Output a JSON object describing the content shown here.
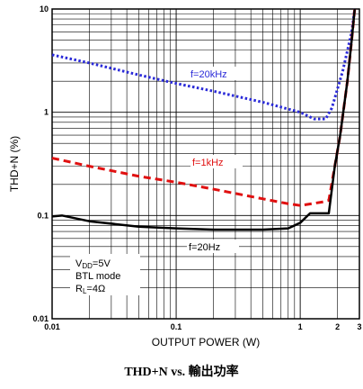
{
  "caption": "THD+N vs. 輸出功率",
  "chart_data": {
    "type": "line",
    "xlabel": "OUTPUT POWER (W)",
    "ylabel": "THD+N (%)",
    "x_scale": "log",
    "y_scale": "log",
    "xlim": [
      0.01,
      3
    ],
    "ylim": [
      0.01,
      10
    ],
    "x_ticks": [
      {
        "value": 0.01,
        "label": "0.01"
      },
      {
        "value": 0.1,
        "label": "0.1"
      },
      {
        "value": 1,
        "label": "1"
      },
      {
        "value": 2,
        "label": "2"
      },
      {
        "value": 3,
        "label": "3"
      }
    ],
    "y_ticks": [
      {
        "value": 0.01,
        "label": "0.01"
      },
      {
        "value": 0.1,
        "label": "0.1"
      },
      {
        "value": 1,
        "label": "1"
      },
      {
        "value": 10,
        "label": "10"
      }
    ],
    "grid": true,
    "series": [
      {
        "name": "f=20kHz",
        "color": "#2a2ad8",
        "style": "dotted",
        "points": [
          [
            0.01,
            3.6
          ],
          [
            0.02,
            3.0
          ],
          [
            0.05,
            2.3
          ],
          [
            0.1,
            1.9
          ],
          [
            0.2,
            1.6
          ],
          [
            0.5,
            1.25
          ],
          [
            1.0,
            1.0
          ],
          [
            1.3,
            0.86
          ],
          [
            1.6,
            0.86
          ],
          [
            1.8,
            1.1
          ],
          [
            2.2,
            2.5
          ],
          [
            2.6,
            6.0
          ],
          [
            2.75,
            10.0
          ]
        ]
      },
      {
        "name": "f=1kHz",
        "color": "#e01010",
        "style": "dashed",
        "points": [
          [
            0.01,
            0.36
          ],
          [
            0.02,
            0.3
          ],
          [
            0.05,
            0.24
          ],
          [
            0.1,
            0.21
          ],
          [
            0.2,
            0.18
          ],
          [
            0.5,
            0.145
          ],
          [
            0.8,
            0.13
          ],
          [
            1.0,
            0.125
          ],
          [
            1.5,
            0.135
          ],
          [
            1.7,
            0.14
          ],
          [
            1.9,
            0.3
          ],
          [
            2.1,
            0.6
          ],
          [
            2.4,
            2.0
          ],
          [
            2.6,
            5.0
          ],
          [
            2.75,
            10.0
          ]
        ]
      },
      {
        "name": "f=20Hz",
        "color": "#000000",
        "style": "solid",
        "points": [
          [
            0.01,
            0.098
          ],
          [
            0.012,
            0.1
          ],
          [
            0.02,
            0.088
          ],
          [
            0.05,
            0.078
          ],
          [
            0.1,
            0.075
          ],
          [
            0.2,
            0.073
          ],
          [
            0.5,
            0.073
          ],
          [
            0.8,
            0.075
          ],
          [
            1.0,
            0.085
          ],
          [
            1.2,
            0.105
          ],
          [
            1.4,
            0.105
          ],
          [
            1.7,
            0.105
          ],
          [
            1.9,
            0.3
          ],
          [
            2.1,
            0.6
          ],
          [
            2.4,
            2.0
          ],
          [
            2.6,
            5.0
          ],
          [
            2.75,
            10.0
          ]
        ]
      }
    ],
    "annotations": {
      "conditions": [
        "V_DD=5V",
        "BTL mode",
        "R_L=4Ω"
      ],
      "vdd_main": "V",
      "vdd_sub": "DD",
      "vdd_tail": "=5V",
      "mode": "BTL mode",
      "rl_main": "R",
      "rl_sub": "L",
      "rl_tail": "=4Ω"
    }
  }
}
